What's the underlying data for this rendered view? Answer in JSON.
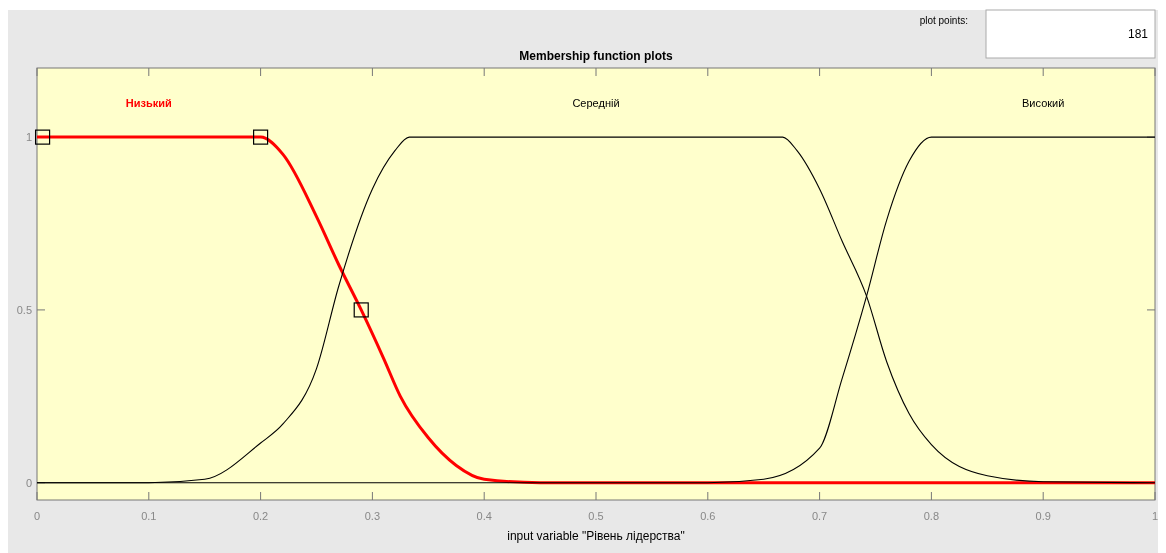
{
  "chart_data": {
    "type": "line",
    "title": "Membership function plots",
    "xlabel": "input variable \"Рівень лідерства\"",
    "annotations": [
      "plot points:",
      "181"
    ],
    "xlim": [
      0,
      1
    ],
    "ylim": [
      -0.05,
      1.2
    ],
    "xticks": [
      0,
      0.1,
      0.2,
      0.3,
      0.4,
      0.5,
      0.6,
      0.7,
      0.8,
      0.9,
      1
    ],
    "yticks": [
      0,
      0.5,
      1
    ],
    "grid": false,
    "line_style": "solid",
    "series": [
      {
        "name": "Низький",
        "color": "#ff0000",
        "x": [
          0,
          0.2,
          0.22,
          0.25,
          0.27,
          0.29,
          0.31,
          0.325,
          0.35,
          0.375,
          0.4,
          0.45,
          1
        ],
        "values": [
          1,
          1,
          0.95,
          0.77,
          0.63,
          0.5,
          0.36,
          0.25,
          0.13,
          0.05,
          0.01,
          0,
          0
        ]
      },
      {
        "name": "Середній",
        "color": "#000000",
        "x": [
          0,
          0.1,
          0.15,
          0.2,
          0.22,
          0.25,
          0.27,
          0.3,
          0.32,
          0.333,
          0.667,
          0.68,
          0.7,
          0.72,
          0.742,
          0.76,
          0.78,
          0.8,
          0.85,
          0.9,
          1
        ],
        "values": [
          0,
          0,
          0.01,
          0.115,
          0.17,
          0.33,
          0.57,
          0.85,
          0.96,
          1,
          1,
          0.96,
          0.85,
          0.7,
          0.54,
          0.35,
          0.2,
          0.11,
          0.02,
          0.003,
          0
        ]
      },
      {
        "name": "Високий",
        "color": "#000000",
        "x": [
          0,
          0.6,
          0.65,
          0.7,
          0.72,
          0.742,
          0.76,
          0.78,
          0.8,
          1
        ],
        "values": [
          0,
          0,
          0.01,
          0.1,
          0.3,
          0.54,
          0.76,
          0.93,
          1,
          1
        ]
      },
      {
        "type": "scatter",
        "marker": "square",
        "color": "#000000",
        "x": [
          0.005,
          0.2,
          0.29
        ],
        "values": [
          1,
          1,
          0.5
        ]
      }
    ]
  }
}
